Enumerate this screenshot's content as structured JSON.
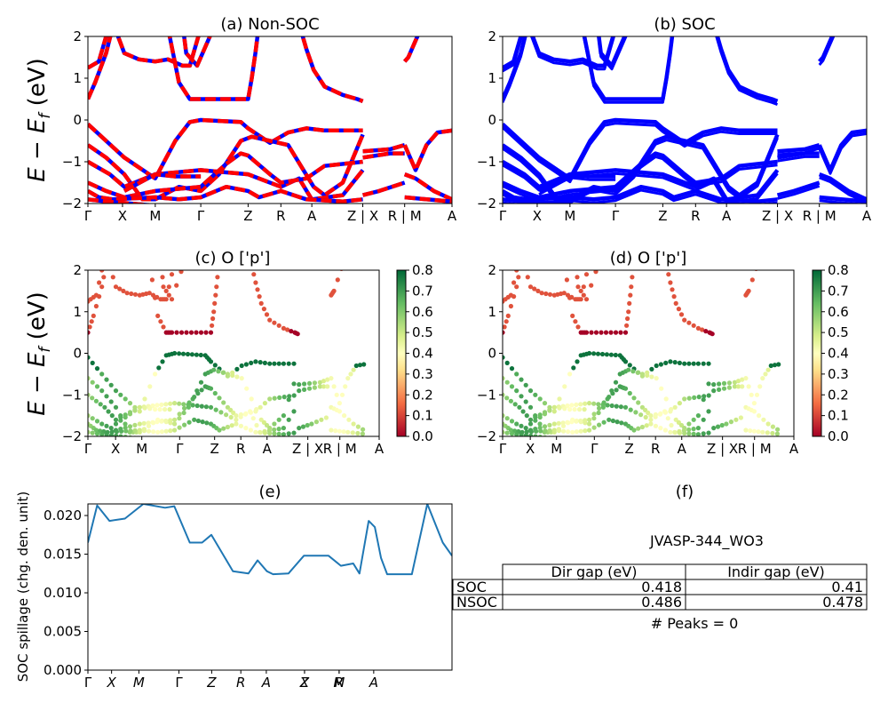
{
  "figure": {
    "ylabel_main": "E − E",
    "ylabel_sub": "f",
    "ylabel_unit": " (eV)",
    "spillage_ylabel": "SOC spillage (chg. den. unit)"
  },
  "band_kpath_labels": [
    "Γ",
    "X",
    "M",
    "Γ",
    "Z",
    "R",
    "A",
    "Z | X",
    "R | M",
    "A"
  ],
  "spillage_kpath_labels": [
    "Γ",
    "X",
    "M",
    "Γ",
    "Z",
    "R",
    "A",
    "Z",
    "X",
    "R",
    "M",
    "A"
  ],
  "colors": {
    "band_nonsoc_dash": "#ff0000",
    "band_soc": "#0000ff",
    "spillage_line": "#1f77b4"
  },
  "chart_data": [
    {
      "id": "a",
      "type": "line",
      "title": "(a) Non-SOC",
      "ylim": [
        -2,
        2
      ],
      "yticks": [
        "2",
        "1",
        "0",
        "−1",
        "−2"
      ]
    },
    {
      "id": "b",
      "type": "line",
      "title": "(b) SOC",
      "ylim": [
        -2,
        2
      ],
      "yticks": [
        "2",
        "1",
        "0",
        "−1",
        "−2"
      ]
    },
    {
      "id": "c",
      "type": "scatter",
      "title": "(c)  O ['p']",
      "ylim": [
        -2,
        2
      ],
      "yticks": [
        "2",
        "1",
        "0",
        "−1",
        "−2"
      ],
      "colorbar": {
        "colormap": "RdYlGn",
        "range": [
          0,
          0.8
        ],
        "ticks": [
          "0.8",
          "0.7",
          "0.6",
          "0.5",
          "0.4",
          "0.3",
          "0.2",
          "0.1",
          "0.0"
        ]
      }
    },
    {
      "id": "d",
      "type": "scatter",
      "title": "(d) O ['p']",
      "ylim": [
        -2,
        2
      ],
      "yticks": [
        "2",
        "1",
        "0",
        "−1",
        "−2"
      ],
      "colorbar": {
        "colormap": "RdYlGn",
        "range": [
          0,
          0.8
        ],
        "ticks": [
          "0.8",
          "0.7",
          "0.6",
          "0.5",
          "0.4",
          "0.3",
          "0.2",
          "0.1",
          "0.0"
        ]
      }
    },
    {
      "id": "e",
      "type": "line",
      "title": "(e)",
      "ylim": [
        0,
        0.0215
      ],
      "yticks": [
        "0.020",
        "0.015",
        "0.010",
        "0.005",
        "0.000"
      ],
      "x": [
        0,
        0.03,
        0.07,
        0.12,
        0.18,
        0.25,
        0.28,
        0.33,
        0.37,
        0.4,
        0.47,
        0.52,
        0.55,
        0.58,
        0.6,
        0.65,
        0.7,
        0.78,
        0.82,
        0.86,
        0.88,
        0.91,
        0.93,
        0.95,
        0.97,
        1.05,
        1.1,
        1.15,
        1.18
      ],
      "y": [
        0.0165,
        0.0213,
        0.0193,
        0.0196,
        0.0215,
        0.021,
        0.0212,
        0.0165,
        0.0165,
        0.0175,
        0.0128,
        0.0125,
        0.0142,
        0.0128,
        0.0124,
        0.0125,
        0.0148,
        0.0148,
        0.0135,
        0.0138,
        0.0125,
        0.0193,
        0.0185,
        0.0145,
        0.0124,
        0.0124,
        0.0215,
        0.0165,
        0.0148
      ]
    },
    {
      "id": "f",
      "type": "table",
      "title": "(f)",
      "name": "JVASP-344_WO3",
      "columns": [
        "",
        "Dir gap (eV)",
        "Indir gap (eV)"
      ],
      "rows": [
        [
          "SOC",
          "0.418",
          "0.41"
        ],
        [
          "NSOC",
          "0.486",
          "0.478"
        ]
      ],
      "note": "# Peaks = 0"
    }
  ]
}
